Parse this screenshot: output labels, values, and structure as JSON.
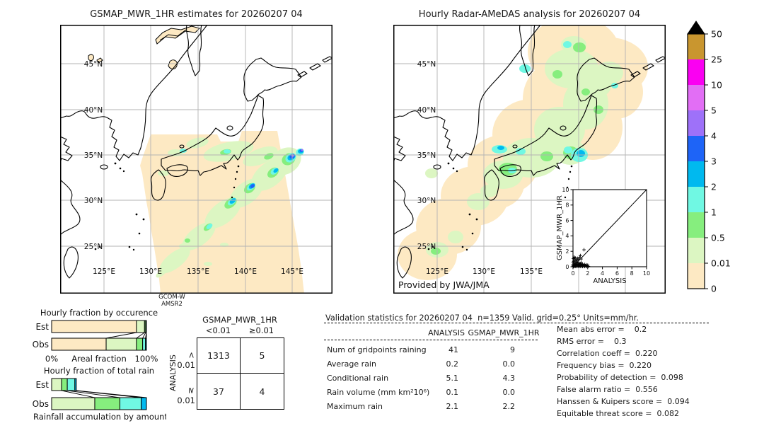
{
  "palette": {
    "peach": "#fde9c3",
    "pale_green": "#dcf6c2",
    "light_green": "#86ee7e",
    "aqua": "#70f8e3",
    "sky_blue": "#00b9ef",
    "blue": "#1e64f7",
    "purple": "#9e71f9",
    "orchid": "#e26ef5",
    "magenta": "#fa00f2",
    "gold": "#c9962f",
    "grid_gray": "#b3b3b3"
  },
  "left_map": {
    "title": "GSMAP_MWR_1HR estimates for 20260207 04",
    "lat_labels": [
      "45°N",
      "40°N",
      "35°N",
      "30°N",
      "25°N"
    ],
    "lon_labels": [
      "125°E",
      "130°E",
      "135°E",
      "140°E",
      "145°E"
    ],
    "footer_lines": [
      "GCOM-W",
      "AMSR2"
    ]
  },
  "right_map": {
    "title": "Hourly Radar-AMeDAS analysis for 20260207 04",
    "lat_labels": [
      "45°N",
      "40°N",
      "35°N",
      "30°N",
      "25°N"
    ],
    "lon_labels": [
      "125°E",
      "130°E",
      "135°E"
    ],
    "credit": "Provided by JWA/JMA"
  },
  "colorbar": {
    "tick_labels": [
      "50",
      "25",
      "10",
      "5",
      "4",
      "3",
      "2",
      "1",
      "0.5",
      "0.01",
      "0"
    ],
    "colors": [
      "#c9962f",
      "#fa00f2",
      "#e26ef5",
      "#9e71f9",
      "#1e64f7",
      "#00b9ef",
      "#70f8e3",
      "#86ee7e",
      "#dcf6c2",
      "#fde9c3"
    ],
    "overflow_color": "#000000"
  },
  "chart_data": [
    {
      "id": "occurrence",
      "type": "bar",
      "stacked": true,
      "title": "Hourly fraction by occurence",
      "xlabel": "Areal fraction",
      "x_ticks": [
        "0%",
        "100%"
      ],
      "xlim": [
        0,
        100
      ],
      "categories": [
        "Est",
        "Obs"
      ],
      "rows": [
        {
          "label": "Est",
          "segments": [
            {
              "value": 89.5,
              "color": "#fde9c3"
            },
            {
              "value": 8.5,
              "color": "#dcf6c2"
            },
            {
              "value": 1.2,
              "color": "#86ee7e"
            },
            {
              "value": 0.8,
              "color": "#70f8e3"
            }
          ]
        },
        {
          "label": "Obs",
          "segments": [
            {
              "value": 57.5,
              "color": "#fde9c3"
            },
            {
              "value": 32,
              "color": "#dcf6c2"
            },
            {
              "value": 6.5,
              "color": "#86ee7e"
            },
            {
              "value": 3,
              "color": "#70f8e3"
            },
            {
              "value": 1,
              "color": "#00b9ef"
            }
          ]
        }
      ]
    },
    {
      "id": "total_rain",
      "type": "bar",
      "stacked": true,
      "title": "Hourly fraction of total rain",
      "xlabel": "Rainfall accumulation by amount",
      "xlim": [
        0,
        100
      ],
      "categories": [
        "Est",
        "Obs"
      ],
      "rows": [
        {
          "label": "Est",
          "segments": [
            {
              "value": 10.5,
              "color": "#dcf6c2"
            },
            {
              "value": 6,
              "color": "#86ee7e"
            },
            {
              "value": 8,
              "color": "#70f8e3"
            },
            {
              "value": 1.5,
              "color": "#00b9ef"
            }
          ]
        },
        {
          "label": "Obs",
          "segments": [
            {
              "value": 45.5,
              "color": "#dcf6c2"
            },
            {
              "value": 26.5,
              "color": "#86ee7e"
            },
            {
              "value": 22.5,
              "color": "#70f8e3"
            },
            {
              "value": 5.5,
              "color": "#00b9ef"
            }
          ]
        }
      ]
    },
    {
      "id": "inset_scatter",
      "type": "scatter",
      "xlabel": "ANALYSIS",
      "ylabel": "GSMAP_MWR_1HR",
      "xlim": [
        0,
        10
      ],
      "ylim": [
        0,
        10
      ],
      "ticks": [
        "0",
        "2",
        "4",
        "6",
        "8",
        "10"
      ],
      "identity_line": true,
      "points": [
        [
          0.05,
          0.05
        ],
        [
          0.1,
          0.15
        ],
        [
          0.15,
          0.4
        ],
        [
          0.2,
          0.08
        ],
        [
          0.25,
          0.3
        ],
        [
          0.3,
          0.55
        ],
        [
          0.35,
          0.12
        ],
        [
          0.4,
          0.25
        ],
        [
          0.45,
          0.5
        ],
        [
          0.5,
          0.1
        ],
        [
          0.55,
          0.35
        ],
        [
          0.6,
          0.2
        ],
        [
          0.65,
          0.55
        ],
        [
          0.7,
          0.1
        ],
        [
          0.75,
          0.3
        ],
        [
          0.8,
          0.15
        ],
        [
          0.85,
          0.45
        ],
        [
          0.9,
          0.25
        ],
        [
          0.95,
          0.1
        ],
        [
          1.0,
          0.4
        ],
        [
          1.05,
          0.2
        ],
        [
          1.1,
          0.5
        ],
        [
          1.15,
          0.3
        ],
        [
          1.2,
          0.15
        ],
        [
          1.3,
          0.35
        ],
        [
          1.4,
          0.2
        ],
        [
          1.5,
          0.1
        ],
        [
          1.6,
          0.3
        ],
        [
          1.7,
          0.15
        ],
        [
          1.8,
          0.25
        ],
        [
          1.9,
          0.1
        ],
        [
          2.0,
          0.2
        ],
        [
          2.1,
          0.05
        ],
        [
          0.1,
          0.7
        ],
        [
          0.2,
          0.9
        ],
        [
          0.3,
          1.15
        ],
        [
          0.5,
          0.75
        ],
        [
          0.7,
          0.95
        ],
        [
          0.9,
          1.2
        ],
        [
          1.0,
          1.45
        ],
        [
          1.1,
          1.0
        ],
        [
          0.05,
          1.05
        ],
        [
          0.15,
          1.25
        ],
        [
          1.5,
          2.2
        ],
        [
          0.6,
          1.1
        ],
        [
          0.4,
          0.85
        ],
        [
          0.02,
          0.3
        ],
        [
          0.02,
          0.5
        ],
        [
          0.03,
          0.15
        ],
        [
          0.08,
          0.02
        ],
        [
          0.3,
          0.02
        ],
        [
          0.55,
          0.02
        ],
        [
          0.8,
          0.03
        ],
        [
          1.05,
          0.02
        ],
        [
          1.3,
          0.02
        ],
        [
          1.6,
          0.02
        ],
        [
          1.85,
          0.02
        ]
      ]
    },
    {
      "id": "contingency",
      "type": "table",
      "title": "GSMAP_MWR_1HR",
      "row_axis": "ANALYSIS",
      "col_headers": [
        "<0.01",
        "≥0.01"
      ],
      "row_headers": [
        {
          "symbol": "<",
          "number": "0.01"
        },
        {
          "symbol": "≥",
          "number": "0.01"
        }
      ],
      "values": [
        [
          "1313",
          "5"
        ],
        [
          "37",
          "4"
        ]
      ]
    },
    {
      "id": "validation",
      "type": "table",
      "title": "Validation statistics for 20260207 04  n=1359 Valid. grid=0.25° Units=mm/hr.",
      "col_headers": [
        "ANALYSIS",
        "GSMAP_MWR_1HR"
      ],
      "rows": [
        [
          "Num of gridpoints raining",
          "41",
          "9"
        ],
        [
          "Average rain",
          "0.2",
          "0.0"
        ],
        [
          "Conditional rain",
          "5.1",
          "4.3"
        ],
        [
          "Rain volume (mm km²10⁶)",
          "0.1",
          "0.0"
        ],
        [
          "Maximum rain",
          "2.1",
          "2.2"
        ]
      ],
      "metrics": [
        "Mean abs error =    0.2",
        "RMS error =    0.3",
        "Correlation coeff =  0.220",
        "Frequency bias =  0.220",
        "Probability of detection =  0.098",
        "False alarm ratio =  0.556",
        "Hanssen & Kuipers score =  0.094",
        "Equitable threat score =  0.082"
      ]
    }
  ]
}
